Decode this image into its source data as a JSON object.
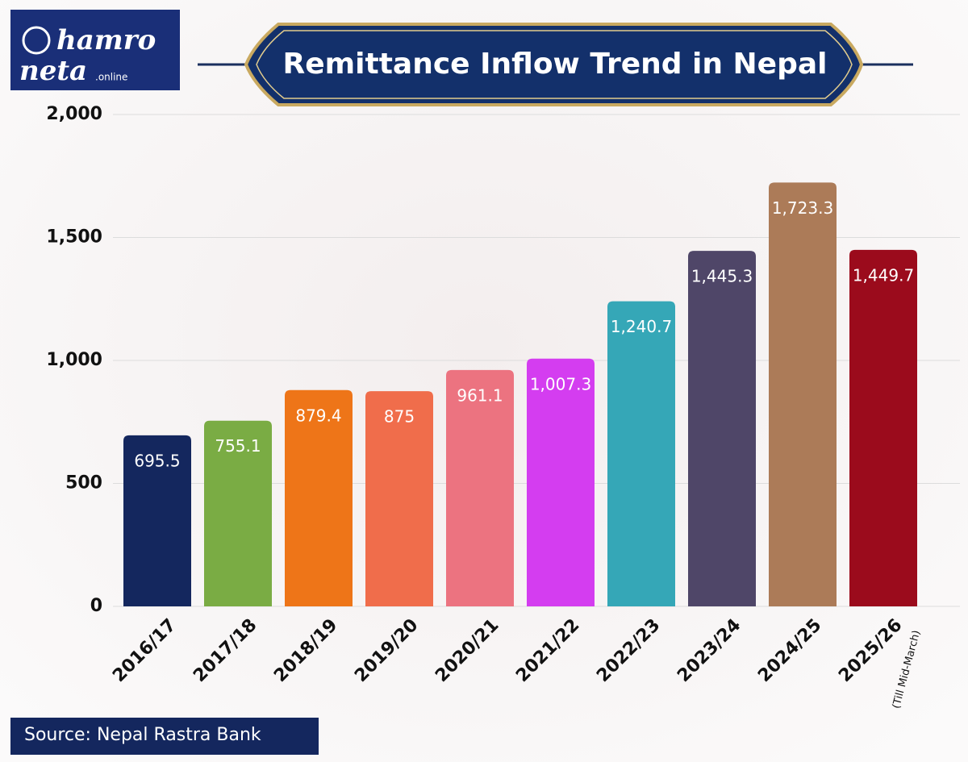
{
  "chart_data": {
    "type": "bar",
    "title": "Remittance Inflow Trend in Nepal",
    "logo": {
      "line1": "hamro",
      "line2": "neta",
      "suffix": ".online"
    },
    "source": "Source: Nepal Rastra Bank",
    "categories": [
      "2016/17",
      "2017/18",
      "2018/19",
      "2019/20",
      "2020/21",
      "2021/22",
      "2022/23",
      "2023/24",
      "2024/25",
      "2025/26"
    ],
    "last_category_note": "(Till Mid-March)",
    "values": [
      695.5,
      755.1,
      879.4,
      875,
      961.1,
      1007.3,
      1240.7,
      1445.3,
      1723.3,
      1449.7
    ],
    "value_labels": [
      "695.5",
      "755.1",
      "879.4",
      "875",
      "961.1",
      "1,007.3",
      "1,240.7",
      "1,445.3",
      "1,723.3",
      "1,449.7"
    ],
    "colors": [
      "#14275e",
      "#7aac44",
      "#ee7518",
      "#f06d4b",
      "#ec7380",
      "#d43df0",
      "#35a7b7",
      "#4f4668",
      "#ac7b58",
      "#9b0b1c"
    ],
    "ylim": [
      0,
      2000
    ],
    "yticks": [
      0,
      500,
      {
        "value": 1000,
        "label": "1,000"
      },
      {
        "value": 1500,
        "label": "1,500"
      },
      {
        "value": 2000,
        "label": "2,000"
      }
    ],
    "grid": true
  }
}
